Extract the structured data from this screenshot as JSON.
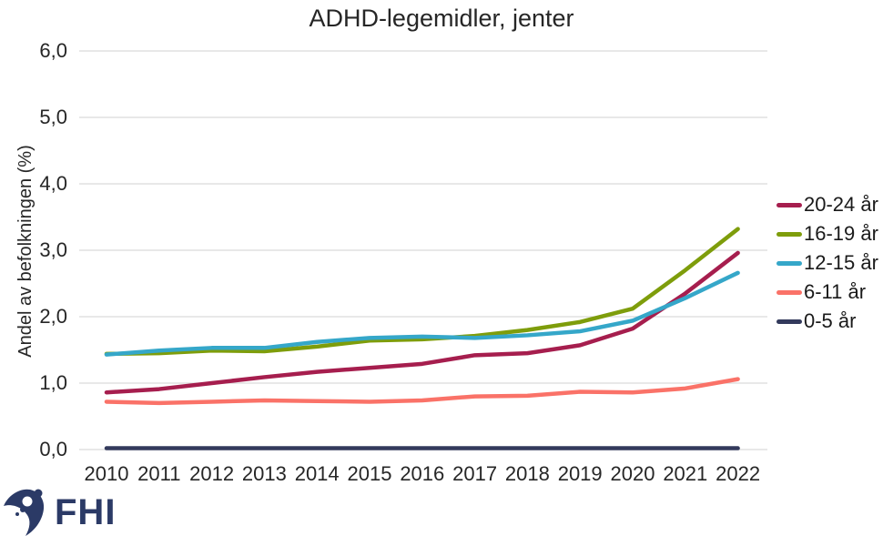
{
  "title": "ADHD-legemidler, jenter",
  "y_axis_label": "Andel av befolkningen (%)",
  "y_ticks": [
    "6,0",
    "5,0",
    "4,0",
    "3,0",
    "2,0",
    "1,0",
    "0,0"
  ],
  "logo_text": "FHI",
  "colors": {
    "grid": "#D9D9D9",
    "text": "#262626",
    "logo": "#2B3A66"
  },
  "chart_data": {
    "type": "line",
    "title": "ADHD-legemidler, jenter",
    "xlabel": "",
    "ylabel": "Andel av befolkningen (%)",
    "ylim": [
      0.0,
      6.0
    ],
    "y_tick_step": 1.0,
    "grid": "horizontal",
    "legend_position": "right",
    "x": [
      2010,
      2011,
      2012,
      2013,
      2014,
      2015,
      2016,
      2017,
      2018,
      2019,
      2020,
      2021,
      2022
    ],
    "series": [
      {
        "name": "20-24 år",
        "color": "#A61E4E",
        "values": [
          0.86,
          0.91,
          1.0,
          1.09,
          1.17,
          1.23,
          1.29,
          1.42,
          1.45,
          1.57,
          1.82,
          2.35,
          2.96
        ]
      },
      {
        "name": "16-19 år",
        "color": "#7E9D0B",
        "values": [
          1.44,
          1.45,
          1.49,
          1.48,
          1.55,
          1.64,
          1.66,
          1.71,
          1.8,
          1.92,
          2.12,
          2.7,
          3.32
        ]
      },
      {
        "name": "12-15 år",
        "color": "#35A7C9",
        "values": [
          1.43,
          1.49,
          1.53,
          1.53,
          1.62,
          1.68,
          1.7,
          1.68,
          1.72,
          1.78,
          1.94,
          2.28,
          2.66
        ]
      },
      {
        "name": "6-11 år",
        "color": "#FA7268",
        "values": [
          0.72,
          0.7,
          0.72,
          0.74,
          0.73,
          0.72,
          0.74,
          0.8,
          0.81,
          0.87,
          0.86,
          0.92,
          1.06
        ]
      },
      {
        "name": "0-5 år",
        "color": "#333A5C",
        "values": [
          0.02,
          0.02,
          0.02,
          0.02,
          0.02,
          0.02,
          0.02,
          0.02,
          0.02,
          0.02,
          0.02,
          0.02,
          0.02
        ]
      }
    ]
  }
}
